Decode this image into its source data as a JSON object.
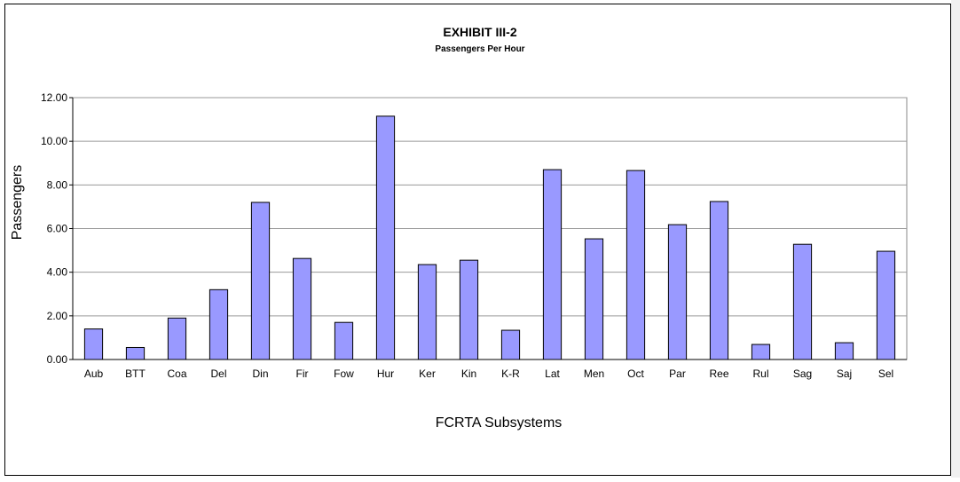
{
  "chart_data": {
    "type": "bar",
    "title": "EXHIBIT III-2",
    "subtitle": "Passengers Per Hour",
    "x_label": "FCRTA Subsystems",
    "y_label": "Passengers",
    "categories": [
      "Aub",
      "BTT",
      "Coa",
      "Del",
      "Din",
      "Fir",
      "Fow",
      "Hur",
      "Ker",
      "Kin",
      "K-R",
      "Lat",
      "Men",
      "Oct",
      "Par",
      "Ree",
      "Rul",
      "Sag",
      "Saj",
      "Sel"
    ],
    "values": [
      1.4,
      0.55,
      1.9,
      3.2,
      7.2,
      4.63,
      1.7,
      11.15,
      4.35,
      4.55,
      1.34,
      8.7,
      5.53,
      8.66,
      6.18,
      7.24,
      0.69,
      5.28,
      0.77,
      4.96
    ],
    "color": "#9999ff",
    "ylim": [
      0,
      12
    ],
    "yticks": [
      {
        "value": 0,
        "label": "0.00"
      },
      {
        "value": 2,
        "label": "2.00"
      },
      {
        "value": 4,
        "label": "4.00"
      },
      {
        "value": 6,
        "label": "6.00"
      },
      {
        "value": 8,
        "label": "8.00"
      },
      {
        "value": 10,
        "label": "10.00"
      },
      {
        "value": 12,
        "label": "12.00"
      }
    ],
    "grid": true
  }
}
